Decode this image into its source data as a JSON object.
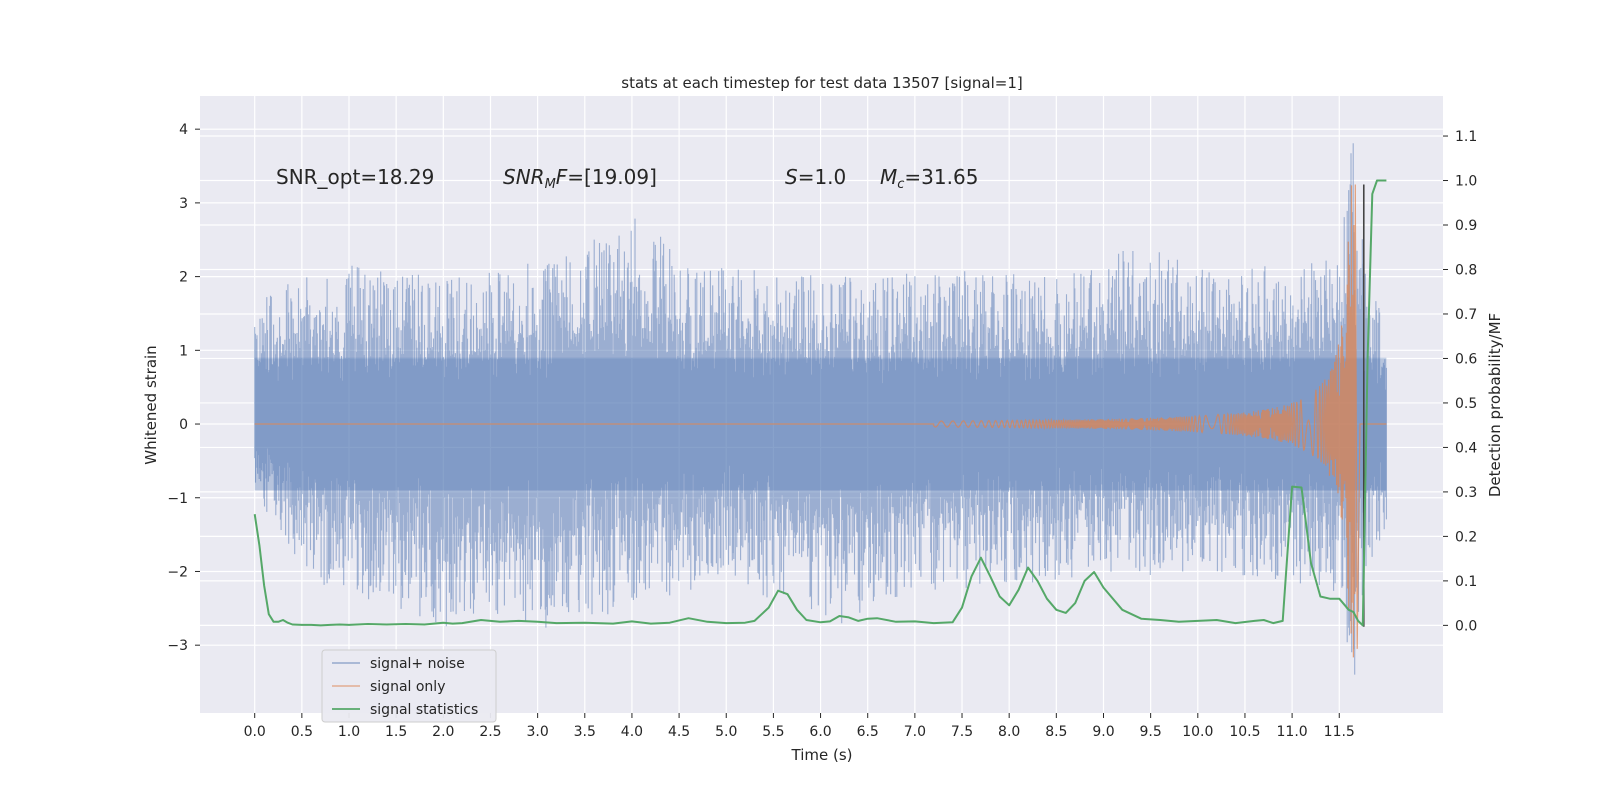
{
  "chart_data": {
    "type": "line",
    "title": "stats at each timestep for test data 13507 [signal=1]",
    "xlabel": "Time (s)",
    "ylabel": "Whitened strain",
    "ylabel_right": "Detection probability/MF",
    "xlim": [
      -0.58,
      12.6
    ],
    "ylim": [
      -3.92,
      4.45
    ],
    "ylim_right": [
      -0.197,
      1.19
    ],
    "x_ticks": [
      0.0,
      0.5,
      1.0,
      1.5,
      2.0,
      2.5,
      3.0,
      3.5,
      4.0,
      4.5,
      5.0,
      5.5,
      6.0,
      6.5,
      7.0,
      7.5,
      8.0,
      8.5,
      9.0,
      9.5,
      10.0,
      10.5,
      11.0,
      11.5
    ],
    "x_tick_labels": [
      "0.0",
      "0.5",
      "1.0",
      "1.5",
      "2.0",
      "2.5",
      "3.0",
      "3.5",
      "4.0",
      "4.5",
      "5.0",
      "5.5",
      "6.0",
      "6.5",
      "7.0",
      "7.5",
      "8.0",
      "8.5",
      "9.0",
      "9.5",
      "10.0",
      "10.5",
      "11.0",
      "11.5"
    ],
    "y_ticks": [
      -3,
      -2,
      -1,
      0,
      1,
      2,
      3,
      4
    ],
    "y_tick_labels": [
      "−3",
      "−2",
      "−1",
      "0",
      "1",
      "2",
      "3",
      "4"
    ],
    "y_ticks_right": [
      0.0,
      0.1,
      0.2,
      0.3,
      0.4,
      0.5,
      0.6,
      0.7,
      0.8,
      0.9,
      1.0,
      1.1
    ],
    "y_tick_labels_right": [
      "0.0",
      "0.1",
      "0.2",
      "0.3",
      "0.4",
      "0.5",
      "0.6",
      "0.7",
      "0.8",
      "0.9",
      "1.0",
      "1.1"
    ],
    "grid": true,
    "legend_position": "lower-left",
    "annotations": {
      "snr_opt": "SNR_opt=18.29",
      "snr_mf_main": "SNR",
      "snr_mf_sub": "M",
      "snr_mf_tail": "F",
      "snr_mf_value": "=[19.09]",
      "s_symbol": "S",
      "s_value": "=1.0",
      "mc_symbol": "M",
      "mc_sub": "c",
      "mc_value": "=31.65"
    },
    "colors": {
      "noise": "#4c72b0",
      "signal": "#dd8452",
      "stats": "#55a868",
      "background": "#eaeaf2",
      "vline": "#444444"
    },
    "vertical_line_x": 11.76,
    "series": [
      {
        "name": "signal+ noise",
        "axis": "left",
        "style": "noise-band",
        "x_range": [
          0.0,
          12.0
        ],
        "envelope_upper": [
          [
            0.0,
            1.9
          ],
          [
            0.5,
            2.0
          ],
          [
            1.0,
            2.2
          ],
          [
            2.0,
            2.0
          ],
          [
            3.0,
            2.2
          ],
          [
            4.1,
            2.95
          ],
          [
            4.5,
            2.2
          ],
          [
            5.5,
            2.1
          ],
          [
            6.5,
            2.0
          ],
          [
            7.5,
            2.1
          ],
          [
            8.5,
            2.0
          ],
          [
            9.3,
            2.4
          ],
          [
            10.0,
            2.1
          ],
          [
            11.0,
            2.2
          ],
          [
            11.5,
            2.3
          ],
          [
            11.65,
            4.1
          ],
          [
            11.8,
            2.0
          ],
          [
            12.0,
            1.3
          ]
        ],
        "envelope_lower": [
          [
            0.0,
            -0.9
          ],
          [
            0.5,
            -2.0
          ],
          [
            1.0,
            -2.3
          ],
          [
            2.0,
            -2.8
          ],
          [
            3.0,
            -2.7
          ],
          [
            4.0,
            -2.5
          ],
          [
            5.0,
            -2.1
          ],
          [
            6.0,
            -2.75
          ],
          [
            7.0,
            -2.3
          ],
          [
            8.0,
            -2.2
          ],
          [
            9.0,
            -2.1
          ],
          [
            10.0,
            -2.0
          ],
          [
            11.0,
            -2.2
          ],
          [
            11.5,
            -2.3
          ],
          [
            11.65,
            -3.5
          ],
          [
            11.8,
            -2.0
          ],
          [
            12.0,
            -1.4
          ]
        ]
      },
      {
        "name": "signal only",
        "axis": "left",
        "style": "chirp",
        "chirp_start": 7.2,
        "chirp_peak": 11.67,
        "peak_amplitude_upper": 3.25,
        "peak_amplitude_lower": -3.05
      },
      {
        "name": "signal statistics",
        "axis": "right",
        "style": "line",
        "x": [
          0.0,
          0.05,
          0.1,
          0.15,
          0.2,
          0.25,
          0.3,
          0.35,
          0.4,
          0.5,
          0.6,
          0.7,
          0.8,
          0.9,
          1.0,
          1.2,
          1.4,
          1.6,
          1.8,
          2.0,
          2.1,
          2.2,
          2.4,
          2.6,
          2.8,
          3.0,
          3.2,
          3.5,
          3.8,
          4.0,
          4.2,
          4.4,
          4.6,
          4.8,
          5.0,
          5.2,
          5.3,
          5.45,
          5.55,
          5.65,
          5.75,
          5.85,
          6.0,
          6.1,
          6.2,
          6.3,
          6.4,
          6.5,
          6.6,
          6.8,
          7.0,
          7.2,
          7.4,
          7.5,
          7.6,
          7.7,
          7.8,
          7.9,
          8.0,
          8.1,
          8.2,
          8.3,
          8.4,
          8.5,
          8.6,
          8.7,
          8.8,
          8.9,
          9.0,
          9.2,
          9.4,
          9.6,
          9.8,
          10.0,
          10.2,
          10.4,
          10.6,
          10.7,
          10.8,
          10.9,
          11.0,
          11.1,
          11.2,
          11.3,
          11.4,
          11.5,
          11.6,
          11.65,
          11.7,
          11.75,
          11.8,
          11.85,
          11.9,
          12.0
        ],
        "y": [
          0.25,
          0.18,
          0.09,
          0.025,
          0.008,
          0.008,
          0.012,
          0.006,
          0.002,
          0.001,
          0.001,
          0.0,
          0.001,
          0.002,
          0.001,
          0.003,
          0.002,
          0.003,
          0.002,
          0.006,
          0.004,
          0.005,
          0.012,
          0.008,
          0.01,
          0.008,
          0.005,
          0.006,
          0.004,
          0.009,
          0.004,
          0.006,
          0.016,
          0.008,
          0.005,
          0.006,
          0.01,
          0.04,
          0.078,
          0.07,
          0.035,
          0.012,
          0.007,
          0.009,
          0.021,
          0.018,
          0.01,
          0.015,
          0.016,
          0.008,
          0.009,
          0.005,
          0.007,
          0.04,
          0.11,
          0.152,
          0.11,
          0.065,
          0.045,
          0.08,
          0.13,
          0.1,
          0.06,
          0.035,
          0.028,
          0.05,
          0.1,
          0.12,
          0.085,
          0.035,
          0.015,
          0.012,
          0.008,
          0.01,
          0.012,
          0.005,
          0.01,
          0.012,
          0.005,
          0.01,
          0.312,
          0.31,
          0.14,
          0.065,
          0.06,
          0.06,
          0.035,
          0.03,
          0.01,
          0.0,
          0.6,
          0.97,
          1.0,
          1.0
        ]
      }
    ]
  }
}
